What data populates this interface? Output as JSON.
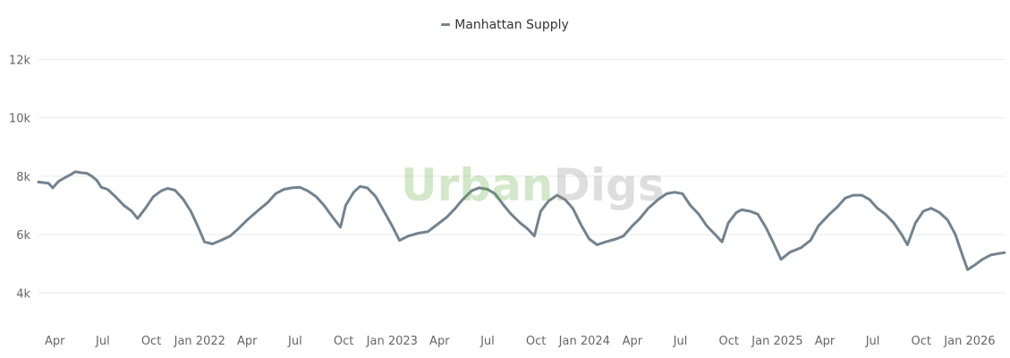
{
  "legend": {
    "label": "Manhattan Supply"
  },
  "watermark": {
    "part1": "Urban",
    "part2": "Digs"
  },
  "chart_data": {
    "type": "line",
    "title": "",
    "xlabel": "",
    "ylabel": "",
    "ylim": [
      3000,
      12500
    ],
    "y_ticks": [
      {
        "value": 4000,
        "label": "4k"
      },
      {
        "value": 6000,
        "label": "6k"
      },
      {
        "value": 8000,
        "label": "8k"
      },
      {
        "value": 10000,
        "label": "10k"
      },
      {
        "value": 12000,
        "label": "12k"
      }
    ],
    "x_range": [
      "2021-03-01",
      "2026-03-10"
    ],
    "x_ticks": [
      {
        "date": "2021-04-01",
        "label": "Apr"
      },
      {
        "date": "2021-07-01",
        "label": "Jul"
      },
      {
        "date": "2021-10-01",
        "label": "Oct"
      },
      {
        "date": "2022-01-01",
        "label": "Jan 2022"
      },
      {
        "date": "2022-04-01",
        "label": "Apr"
      },
      {
        "date": "2022-07-01",
        "label": "Jul"
      },
      {
        "date": "2022-10-01",
        "label": "Oct"
      },
      {
        "date": "2023-01-01",
        "label": "Jan 2023"
      },
      {
        "date": "2023-04-01",
        "label": "Apr"
      },
      {
        "date": "2023-07-01",
        "label": "Jul"
      },
      {
        "date": "2023-10-01",
        "label": "Oct"
      },
      {
        "date": "2024-01-01",
        "label": "Jan 2024"
      },
      {
        "date": "2024-04-01",
        "label": "Apr"
      },
      {
        "date": "2024-07-01",
        "label": "Jul"
      },
      {
        "date": "2024-10-01",
        "label": "Oct"
      },
      {
        "date": "2025-01-01",
        "label": "Jan 2025"
      },
      {
        "date": "2025-04-01",
        "label": "Apr"
      },
      {
        "date": "2025-07-01",
        "label": "Jul"
      },
      {
        "date": "2025-10-01",
        "label": "Oct"
      },
      {
        "date": "2026-01-01",
        "label": "Jan 2026"
      }
    ],
    "grid": true,
    "legend_position": "top-center",
    "series": [
      {
        "name": "Manhattan Supply",
        "color": "#73828f",
        "points": [
          [
            "2021-03-01",
            7800
          ],
          [
            "2021-03-10",
            7780
          ],
          [
            "2021-03-20",
            7760
          ],
          [
            "2021-03-28",
            7600
          ],
          [
            "2021-04-08",
            7820
          ],
          [
            "2021-04-20",
            7950
          ],
          [
            "2021-05-01",
            8050
          ],
          [
            "2021-05-10",
            8150
          ],
          [
            "2021-05-20",
            8120
          ],
          [
            "2021-06-01",
            8100
          ],
          [
            "2021-06-10",
            8000
          ],
          [
            "2021-06-20",
            7850
          ],
          [
            "2021-06-28",
            7620
          ],
          [
            "2021-07-10",
            7550
          ],
          [
            "2021-07-25",
            7300
          ],
          [
            "2021-08-10",
            7000
          ],
          [
            "2021-08-25",
            6800
          ],
          [
            "2021-09-05",
            6550
          ],
          [
            "2021-09-20",
            6900
          ],
          [
            "2021-10-05",
            7300
          ],
          [
            "2021-10-20",
            7500
          ],
          [
            "2021-11-01",
            7580
          ],
          [
            "2021-11-15",
            7520
          ],
          [
            "2021-12-01",
            7200
          ],
          [
            "2021-12-15",
            6800
          ],
          [
            "2021-12-28",
            6300
          ],
          [
            "2022-01-10",
            5750
          ],
          [
            "2022-01-25",
            5680
          ],
          [
            "2022-02-10",
            5800
          ],
          [
            "2022-02-28",
            5950
          ],
          [
            "2022-03-15",
            6200
          ],
          [
            "2022-04-01",
            6500
          ],
          [
            "2022-04-20",
            6800
          ],
          [
            "2022-05-10",
            7100
          ],
          [
            "2022-05-25",
            7400
          ],
          [
            "2022-06-10",
            7550
          ],
          [
            "2022-06-25",
            7600
          ],
          [
            "2022-07-10",
            7620
          ],
          [
            "2022-07-25",
            7500
          ],
          [
            "2022-08-10",
            7300
          ],
          [
            "2022-08-25",
            7000
          ],
          [
            "2022-09-10",
            6600
          ],
          [
            "2022-09-25",
            6250
          ],
          [
            "2022-10-05",
            7000
          ],
          [
            "2022-10-20",
            7450
          ],
          [
            "2022-11-01",
            7650
          ],
          [
            "2022-11-15",
            7600
          ],
          [
            "2022-12-01",
            7300
          ],
          [
            "2022-12-15",
            6850
          ],
          [
            "2023-01-01",
            6300
          ],
          [
            "2023-01-15",
            5800
          ],
          [
            "2023-02-01",
            5950
          ],
          [
            "2023-02-20",
            6050
          ],
          [
            "2023-03-10",
            6100
          ],
          [
            "2023-03-28",
            6350
          ],
          [
            "2023-04-15",
            6600
          ],
          [
            "2023-05-01",
            6900
          ],
          [
            "2023-05-15",
            7200
          ],
          [
            "2023-06-01",
            7500
          ],
          [
            "2023-06-15",
            7600
          ],
          [
            "2023-07-01",
            7550
          ],
          [
            "2023-07-15",
            7400
          ],
          [
            "2023-08-01",
            7000
          ],
          [
            "2023-08-15",
            6700
          ],
          [
            "2023-09-01",
            6400
          ],
          [
            "2023-09-15",
            6200
          ],
          [
            "2023-09-28",
            5950
          ],
          [
            "2023-10-10",
            6800
          ],
          [
            "2023-10-25",
            7150
          ],
          [
            "2023-11-10",
            7350
          ],
          [
            "2023-11-25",
            7200
          ],
          [
            "2023-12-10",
            6900
          ],
          [
            "2023-12-25",
            6350
          ],
          [
            "2024-01-10",
            5850
          ],
          [
            "2024-01-25",
            5650
          ],
          [
            "2024-02-10",
            5750
          ],
          [
            "2024-03-01",
            5850
          ],
          [
            "2024-03-15",
            5950
          ],
          [
            "2024-04-01",
            6300
          ],
          [
            "2024-04-15",
            6550
          ],
          [
            "2024-05-01",
            6900
          ],
          [
            "2024-05-20",
            7200
          ],
          [
            "2024-06-05",
            7400
          ],
          [
            "2024-06-20",
            7450
          ],
          [
            "2024-07-05",
            7400
          ],
          [
            "2024-07-20",
            7000
          ],
          [
            "2024-08-05",
            6700
          ],
          [
            "2024-08-20",
            6300
          ],
          [
            "2024-09-05",
            6000
          ],
          [
            "2024-09-18",
            5750
          ],
          [
            "2024-09-30",
            6400
          ],
          [
            "2024-10-15",
            6750
          ],
          [
            "2024-10-25",
            6850
          ],
          [
            "2024-11-10",
            6800
          ],
          [
            "2024-11-25",
            6700
          ],
          [
            "2024-12-10",
            6250
          ],
          [
            "2024-12-25",
            5700
          ],
          [
            "2025-01-08",
            5150
          ],
          [
            "2025-01-25",
            5400
          ],
          [
            "2025-02-15",
            5550
          ],
          [
            "2025-03-05",
            5800
          ],
          [
            "2025-03-20",
            6300
          ],
          [
            "2025-04-10",
            6700
          ],
          [
            "2025-04-25",
            6950
          ],
          [
            "2025-05-10",
            7250
          ],
          [
            "2025-05-25",
            7350
          ],
          [
            "2025-06-10",
            7350
          ],
          [
            "2025-06-25",
            7200
          ],
          [
            "2025-07-10",
            6900
          ],
          [
            "2025-07-25",
            6700
          ],
          [
            "2025-08-10",
            6400
          ],
          [
            "2025-08-25",
            6000
          ],
          [
            "2025-09-05",
            5650
          ],
          [
            "2025-09-20",
            6400
          ],
          [
            "2025-10-05",
            6800
          ],
          [
            "2025-10-20",
            6900
          ],
          [
            "2025-11-05",
            6750
          ],
          [
            "2025-11-20",
            6500
          ],
          [
            "2025-12-05",
            6000
          ],
          [
            "2025-12-18",
            5300
          ],
          [
            "2025-12-28",
            4800
          ],
          [
            "2026-01-10",
            4950
          ],
          [
            "2026-01-25",
            5150
          ],
          [
            "2026-02-10",
            5300
          ],
          [
            "2026-02-25",
            5350
          ],
          [
            "2026-03-08",
            5380
          ]
        ]
      }
    ]
  }
}
